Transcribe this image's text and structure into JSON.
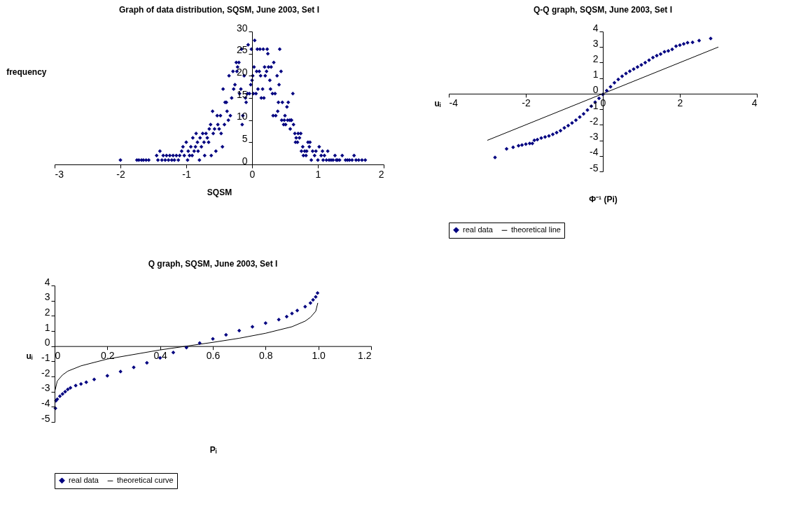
{
  "chart_data": [
    {
      "type": "scatter",
      "title": "Graph of data distribution, SQSM, June 2003, Set I",
      "xlabel": "SQSM",
      "ylabel": "frequency",
      "color": "#000080",
      "marker": "diamond",
      "xlim": [
        -3,
        2
      ],
      "xticks": [
        -3,
        -2,
        -1,
        0,
        1,
        2
      ],
      "ylim": [
        0,
        30
      ],
      "yticks": [
        0,
        5,
        10,
        15,
        20,
        25,
        30
      ],
      "x": [
        -2,
        -1.75,
        -1.72,
        -1.68,
        -1.65,
        -1.61,
        -1.57,
        -1.45,
        -1.43,
        -1.4,
        -1.37,
        -1.35,
        -1.32,
        -1.3,
        -1.27,
        -1.25,
        -1.22,
        -1.2,
        -1.18,
        -1.15,
        -1.12,
        -1.1,
        -1.07,
        -1.05,
        -1.03,
        -1,
        -0.98,
        -0.97,
        -0.95,
        -0.93,
        -0.91,
        -0.9,
        -0.88,
        -0.86,
        -0.85,
        -0.83,
        -0.82,
        -0.8,
        -0.79,
        -0.77,
        -0.75,
        -0.73,
        -0.72,
        -0.7,
        -0.68,
        -0.66,
        -0.65,
        -0.63,
        -0.62,
        -0.6,
        -0.59,
        -0.57,
        -0.55,
        -0.53,
        -0.52,
        -0.5,
        -0.48,
        -0.47,
        -0.45,
        -0.44,
        -0.42,
        -0.41,
        -0.39,
        -0.38,
        -0.36,
        -0.35,
        -0.33,
        -0.31,
        -0.29,
        -0.28,
        -0.26,
        -0.24,
        -0.23,
        -0.22,
        -0.2,
        -0.19,
        -0.17,
        -0.16,
        -0.15,
        -0.14,
        -0.12,
        -0.1,
        -0.09,
        -0.07,
        -0.06,
        -0.04,
        -0.02,
        -0.01,
        0,
        0.01,
        0.02,
        0.03,
        0.04,
        0.06,
        0.07,
        0.08,
        0.09,
        0.11,
        0.12,
        0.13,
        0.14,
        0.16,
        0.17,
        0.18,
        0.19,
        0.2,
        0.22,
        0.23,
        0.24,
        0.25,
        0.27,
        0.28,
        0.29,
        0.31,
        0.32,
        0.33,
        0.35,
        0.36,
        0.38,
        0.39,
        0.4,
        0.41,
        0.42,
        0.44,
        0.45,
        0.46,
        0.48,
        0.49,
        0.5,
        0.51,
        0.53,
        0.54,
        0.55,
        0.57,
        0.58,
        0.59,
        0.6,
        0.62,
        0.63,
        0.65,
        0.66,
        0.67,
        0.69,
        0.7,
        0.72,
        0.74,
        0.75,
        0.77,
        0.78,
        0.8,
        0.82,
        0.83,
        0.85,
        0.87,
        0.88,
        0.9,
        0.92,
        0.95,
        0.97,
        1,
        1.02,
        1.05,
        1.07,
        1.08,
        1.1,
        1.13,
        1.15,
        1.17,
        1.2,
        1.23,
        1.26,
        1.28,
        1.3,
        1.33,
        1.37,
        1.42,
        1.45,
        1.48,
        1.52,
        1.55,
        1.58,
        1.62,
        1.67,
        1.72
      ],
      "values": [
        1,
        1,
        1,
        1,
        1,
        1,
        1,
        2,
        1,
        3,
        1,
        2,
        1,
        2,
        1,
        2,
        1,
        2,
        1,
        2,
        1,
        2,
        3,
        4,
        2,
        5,
        1,
        3,
        2,
        4,
        2,
        6,
        3,
        4,
        7,
        5,
        3,
        1,
        6,
        4,
        7,
        5,
        2,
        7,
        6,
        5,
        8,
        9,
        2,
        12,
        7,
        8,
        3,
        11,
        9,
        8,
        11,
        7,
        4,
        17,
        9,
        14,
        14,
        12,
        10,
        20,
        11,
        15,
        21,
        17,
        18,
        23,
        21,
        22,
        23,
        16,
        17,
        26,
        9,
        11,
        20,
        15,
        14,
        16,
        27,
        16,
        18,
        26,
        19,
        20,
        16,
        22,
        28,
        16,
        21,
        26,
        17,
        21,
        26,
        20,
        15,
        17,
        26,
        15,
        22,
        20,
        21,
        26,
        25,
        22,
        19,
        17,
        22,
        16,
        11,
        23,
        16,
        11,
        20,
        12,
        14,
        18,
        26,
        21,
        10,
        14,
        9,
        10,
        11,
        9,
        13,
        10,
        14,
        10,
        8,
        10,
        10,
        16,
        9,
        7,
        5,
        6,
        5,
        7,
        6,
        7,
        3,
        4,
        2,
        3,
        2,
        3,
        5,
        4,
        5,
        1,
        3,
        2,
        3,
        1,
        4,
        2,
        3,
        1,
        2,
        1,
        3,
        1,
        1,
        1,
        2,
        1,
        1,
        1,
        2,
        1,
        1,
        1,
        1,
        2,
        1,
        1,
        1,
        1
      ]
    },
    {
      "type": "scatter",
      "title": "Q-Q graph, SQSM, June 2003, Set I",
      "xlabel": "Φ⁻¹ (Pi)",
      "ylabel": "uᵢ",
      "legend": "bottom",
      "xlim": [
        -4,
        4
      ],
      "xticks": [
        -4,
        -2,
        0,
        2,
        4
      ],
      "ylim": [
        -5,
        4
      ],
      "yticks": [
        -5,
        -4,
        -3,
        -2,
        -1,
        0,
        1,
        2,
        3,
        4
      ],
      "series": [
        {
          "name": "real data",
          "color": "#000080",
          "marker": "diamond",
          "x": [
            -2.8,
            -2.5,
            -2.33,
            -2.19,
            -2.1,
            -2,
            -1.9,
            -1.83,
            -1.78,
            -1.7,
            -1.6,
            -1.5,
            -1.4,
            -1.3,
            -1.2,
            -1.1,
            -1,
            -0.9,
            -0.8,
            -0.7,
            -0.6,
            -0.5,
            -0.4,
            -0.3,
            -0.2,
            -0.1,
            0,
            0.1,
            0.2,
            0.3,
            0.4,
            0.5,
            0.6,
            0.7,
            0.8,
            0.9,
            1,
            1.1,
            1.2,
            1.3,
            1.4,
            1.5,
            1.6,
            1.7,
            1.8,
            1.9,
            2,
            2.1,
            2.2,
            2.33,
            2.5,
            2.8
          ],
          "values": [
            -4.1,
            -3.55,
            -3.45,
            -3.35,
            -3.3,
            -3.25,
            -3.2,
            -3.2,
            -3,
            -2.95,
            -2.85,
            -2.78,
            -2.72,
            -2.62,
            -2.5,
            -2.38,
            -2.2,
            -2.05,
            -1.88,
            -1.7,
            -1.5,
            -1.3,
            -1.05,
            -0.8,
            -0.55,
            -0.3,
            -0.05,
            0.2,
            0.45,
            0.7,
            0.92,
            1.12,
            1.3,
            1.45,
            1.58,
            1.72,
            1.85,
            2,
            2.15,
            2.32,
            2.45,
            2.55,
            2.7,
            2.75,
            2.85,
            3.05,
            3.12,
            3.2,
            3.28,
            3.3,
            3.42,
            3.55
          ]
        },
        {
          "name": "theoretical line",
          "type": "line",
          "color": "#000000",
          "x": [
            -3,
            3
          ],
          "values": [
            -3,
            3
          ]
        }
      ]
    },
    {
      "type": "scatter",
      "title": "Q graph, SQSM, June 2003, Set I",
      "xlabel": "Pᵢ",
      "ylabel": "uᵢ",
      "legend": "bottom",
      "xlim": [
        0,
        1.2
      ],
      "xticks": [
        0,
        0.2,
        0.4,
        0.6,
        0.8,
        {
          "value": 1,
          "label": "1.0"
        },
        1.2
      ],
      "ylim": [
        -5,
        4
      ],
      "yticks": [
        -5,
        -4,
        -3,
        -2,
        -1,
        0,
        1,
        2,
        3,
        4
      ],
      "series": [
        {
          "name": "real data",
          "color": "#000080",
          "marker": "diamond",
          "x": [
            0.003,
            0.005,
            0.01,
            0.02,
            0.03,
            0.04,
            0.05,
            0.06,
            0.08,
            0.1,
            0.12,
            0.15,
            0.2,
            0.25,
            0.3,
            0.35,
            0.4,
            0.45,
            0.5,
            0.55,
            0.6,
            0.65,
            0.7,
            0.75,
            0.8,
            0.85,
            0.88,
            0.9,
            0.92,
            0.95,
            0.97,
            0.98,
            0.99,
            0.997
          ],
          "values": [
            -4.1,
            -3.6,
            -3.5,
            -3.3,
            -3.15,
            -3,
            -2.85,
            -2.75,
            -2.6,
            -2.5,
            -2.38,
            -2.2,
            -1.95,
            -1.68,
            -1.4,
            -1.1,
            -0.78,
            -0.42,
            -0.1,
            0.2,
            0.48,
            0.75,
            1.02,
            1.28,
            1.52,
            1.75,
            1.95,
            2.15,
            2.35,
            2.6,
            2.85,
            3.05,
            3.25,
            3.5
          ]
        },
        {
          "name": "theoretical curve",
          "type": "line",
          "color": "#000000",
          "x": [
            0.002,
            0.01,
            0.03,
            0.05,
            0.1,
            0.2,
            0.3,
            0.4,
            0.5,
            0.6,
            0.7,
            0.8,
            0.9,
            0.95,
            0.97,
            0.99,
            0.998
          ],
          "values": [
            -2.9,
            -2.3,
            -1.9,
            -1.65,
            -1.3,
            -0.85,
            -0.55,
            -0.25,
            0,
            0.25,
            0.52,
            0.85,
            1.28,
            1.65,
            1.9,
            2.3,
            2.85
          ]
        }
      ]
    }
  ]
}
